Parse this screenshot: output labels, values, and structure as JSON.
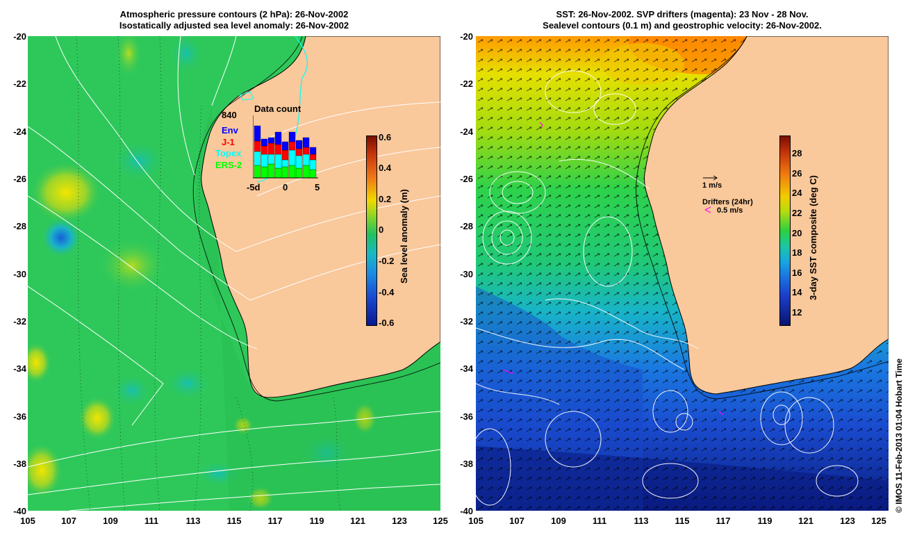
{
  "left": {
    "title1": "Atmospheric pressure contours (2 hPa): 26-Nov-2002",
    "title2": "Isostatically adjusted sea level anomaly: 26-Nov-2002",
    "yticks": [
      "-20",
      "-22",
      "-24",
      "-26",
      "-28",
      "-30",
      "-32",
      "-34",
      "-36",
      "-38",
      "-40"
    ],
    "xticks": [
      "105",
      "107",
      "109",
      "111",
      "113",
      "115",
      "117",
      "119",
      "121",
      "123",
      "125"
    ],
    "colorbar": {
      "label": "Sea level anomaly (m)",
      "ticks": [
        "0.6",
        "0.4",
        "0.2",
        "0",
        "-0.2",
        "-0.4",
        "-0.6"
      ],
      "range": [
        -0.6,
        0.6
      ]
    },
    "inset": {
      "title": "Data count",
      "max_label": "840",
      "legend": [
        {
          "label": "Env",
          "color": "#0000ff"
        },
        {
          "label": "J-1",
          "color": "#ff0000"
        },
        {
          "label": "Topex",
          "color": "#00ffff"
        },
        {
          "label": "ERS-2",
          "color": "#00ff00"
        }
      ],
      "xticks": [
        "-5d",
        "0",
        "5"
      ]
    }
  },
  "right": {
    "title1": "SST: 26-Nov-2002. SVP drifters (magenta): 23 Nov - 28 Nov.",
    "title2": "Sealevel contours (0.1 m) and geostrophic velocity: 26-Nov-2002.",
    "yticks": [
      "-20",
      "-22",
      "-24",
      "-26",
      "-28",
      "-30",
      "-32",
      "-34",
      "-36",
      "-38",
      "-40"
    ],
    "xticks": [
      "105",
      "107",
      "109",
      "111",
      "113",
      "115",
      "117",
      "119",
      "121",
      "123",
      "125"
    ],
    "colorbar": {
      "label": "3-day SST composite (deg C)",
      "ticks": [
        "28",
        "26",
        "24",
        "22",
        "20",
        "18",
        "16",
        "14",
        "12"
      ],
      "range": [
        11,
        30
      ]
    },
    "velocity_scale_label": "1 m/s",
    "drifters_label": "Drifters (24hr)",
    "drifters_speed_label": "0.5 m/s"
  },
  "credit": "© IMOS 11-Feb-2013 01:04 Hobart Time",
  "colors": {
    "land": "#f9c89b",
    "ocean_anomaly_base": "#2ec85a",
    "sst_warm": "#ff8800",
    "sst_cool": "#1040c0",
    "drifter": "#ff00ff",
    "contour": "#ffffff"
  }
}
